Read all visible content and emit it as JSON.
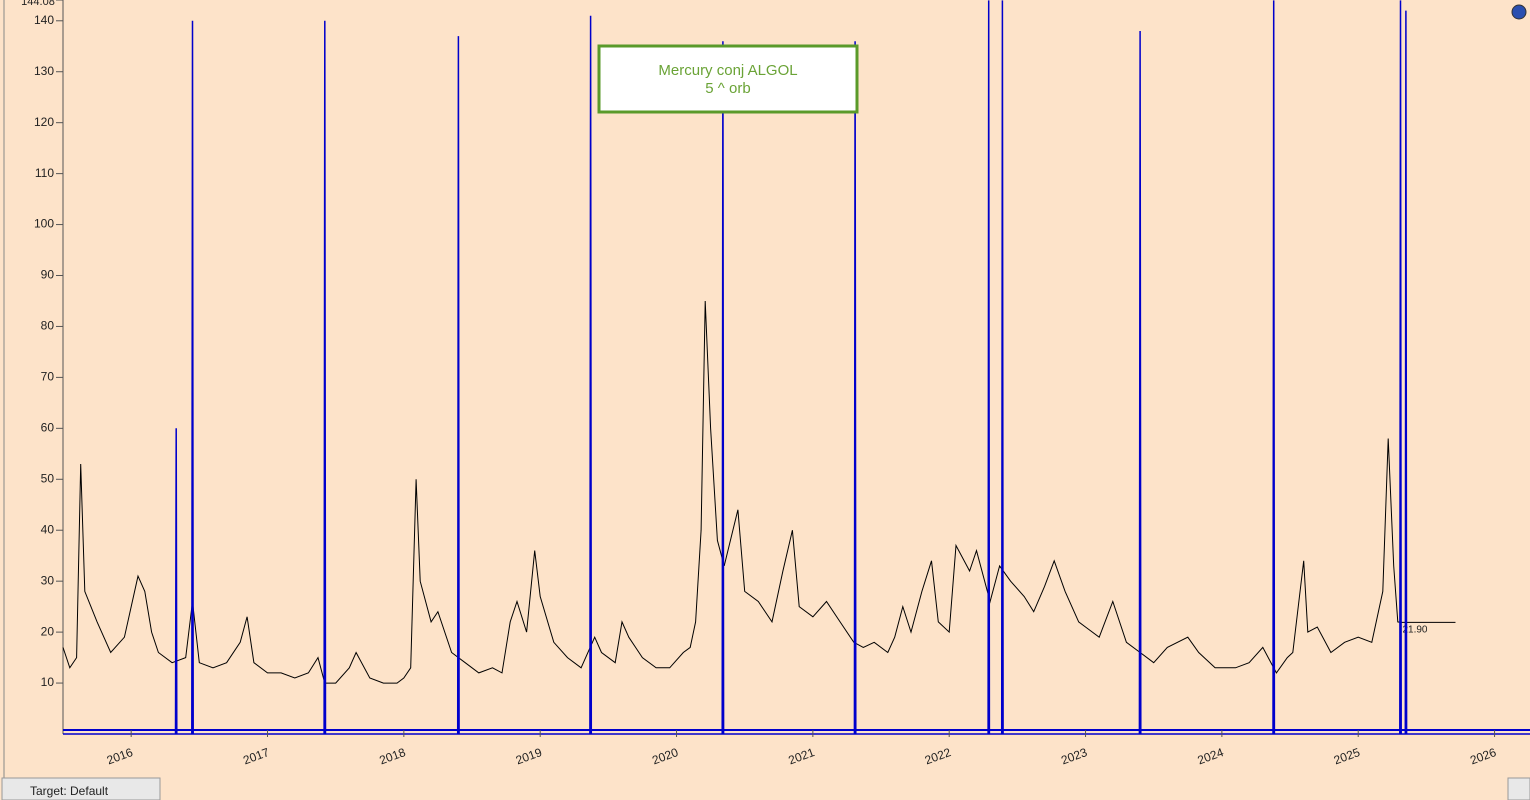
{
  "chart_data": {
    "type": "line",
    "xlim": [
      2015.5,
      2026.26
    ],
    "xticks": [
      2016,
      2017,
      2018,
      2019,
      2020,
      2021,
      2022,
      2023,
      2024,
      2025,
      2026
    ],
    "ylim": [
      0,
      144.08
    ],
    "yticks": [
      10,
      20,
      30,
      40,
      50,
      60,
      70,
      80,
      90,
      100,
      110,
      120,
      130,
      140,
      144.08
    ],
    "series": [
      {
        "color": "#000000",
        "x": [
          2015.5,
          2015.55,
          2015.6,
          2015.63,
          2015.66,
          2015.75,
          2015.85,
          2015.95,
          2016.0,
          2016.05,
          2016.1,
          2016.15,
          2016.2,
          2016.3,
          2016.4,
          2016.45,
          2016.5,
          2016.6,
          2016.7,
          2016.8,
          2016.85,
          2016.9,
          2017.0,
          2017.1,
          2017.2,
          2017.3,
          2017.37,
          2017.42,
          2017.5,
          2017.6,
          2017.65,
          2017.75,
          2017.85,
          2017.95,
          2018.0,
          2018.05,
          2018.09,
          2018.12,
          2018.2,
          2018.25,
          2018.35,
          2018.45,
          2018.55,
          2018.65,
          2018.72,
          2018.78,
          2018.83,
          2018.9,
          2018.96,
          2019.0,
          2019.1,
          2019.2,
          2019.3,
          2019.4,
          2019.45,
          2019.55,
          2019.6,
          2019.65,
          2019.75,
          2019.85,
          2019.95,
          2020.05,
          2020.1,
          2020.14,
          2020.18,
          2020.21,
          2020.25,
          2020.3,
          2020.35,
          2020.45,
          2020.5,
          2020.6,
          2020.7,
          2020.78,
          2020.85,
          2020.9,
          2021.0,
          2021.1,
          2021.2,
          2021.3,
          2021.37,
          2021.45,
          2021.55,
          2021.6,
          2021.66,
          2021.72,
          2021.8,
          2021.87,
          2021.92,
          2022.0,
          2022.05,
          2022.15,
          2022.2,
          2022.3,
          2022.37,
          2022.45,
          2022.55,
          2022.62,
          2022.7,
          2022.77,
          2022.85,
          2022.95,
          2023.0,
          2023.1,
          2023.2,
          2023.3,
          2023.4,
          2023.5,
          2023.6,
          2023.75,
          2023.83,
          2023.95,
          2024.1,
          2024.2,
          2024.3,
          2024.4,
          2024.48,
          2024.52,
          2024.6,
          2024.63,
          2024.7,
          2024.8,
          2024.9,
          2025.0,
          2025.1,
          2025.18,
          2025.22,
          2025.26,
          2025.29,
          2025.31
        ],
        "values": [
          17,
          13,
          15,
          53,
          28,
          22,
          16,
          19,
          25,
          31,
          28,
          20,
          16,
          14,
          15,
          26,
          14,
          13,
          14,
          18,
          23,
          14,
          12,
          12,
          11,
          12,
          15,
          10,
          10,
          13,
          16,
          11,
          10,
          10,
          11,
          13,
          50,
          30,
          22,
          24,
          16,
          14,
          12,
          13,
          12,
          22,
          26,
          20,
          36,
          27,
          18,
          15,
          13,
          19,
          16,
          14,
          22,
          19,
          15,
          13,
          13,
          16,
          17,
          22,
          40,
          85,
          60,
          38,
          33,
          44,
          28,
          26,
          22,
          32,
          40,
          25,
          23,
          26,
          22,
          18,
          17,
          18,
          16,
          19,
          25,
          20,
          28,
          34,
          22,
          20,
          37,
          32,
          36,
          26,
          33,
          30,
          27,
          24,
          29,
          34,
          28,
          22,
          21,
          19,
          26,
          18,
          16,
          14,
          17,
          19,
          16,
          13,
          13,
          14,
          17,
          12,
          15,
          16,
          34,
          20,
          21,
          16,
          18,
          19,
          18,
          28,
          58,
          33,
          22,
          21.9
        ],
        "last_value": {
          "value": 21.9,
          "label": "21.90"
        }
      },
      {
        "name": "Mercury conj ALGOL",
        "legend_note": "5 ^ orb",
        "color": "#0000cc",
        "x": [
          2015.5,
          2016.325,
          2016.33,
          2016.335,
          2016.445,
          2016.45,
          2016.455,
          2017.415,
          2017.42,
          2017.425,
          2018.395,
          2018.4,
          2018.405,
          2019.365,
          2019.37,
          2019.375,
          2020.335,
          2020.34,
          2020.345,
          2021.305,
          2021.31,
          2021.315,
          2022.285,
          2022.29,
          2022.295,
          2022.385,
          2022.39,
          2022.395,
          2023.395,
          2023.4,
          2023.405,
          2024.375,
          2024.38,
          2024.385,
          2025.305,
          2025.31,
          2025.315,
          2025.345,
          2025.35,
          2025.355,
          2026.26
        ],
        "values": [
          0,
          0,
          60,
          0,
          0,
          140,
          0,
          0,
          140,
          0,
          0,
          137,
          0,
          0,
          141,
          0,
          0,
          136,
          0,
          0,
          136,
          0,
          0,
          144,
          0,
          0,
          144,
          0,
          0,
          138,
          0,
          0,
          144,
          0,
          0,
          144,
          0,
          0,
          142,
          0,
          0
        ]
      }
    ]
  },
  "status_bar": {
    "target": "Target: Default"
  }
}
